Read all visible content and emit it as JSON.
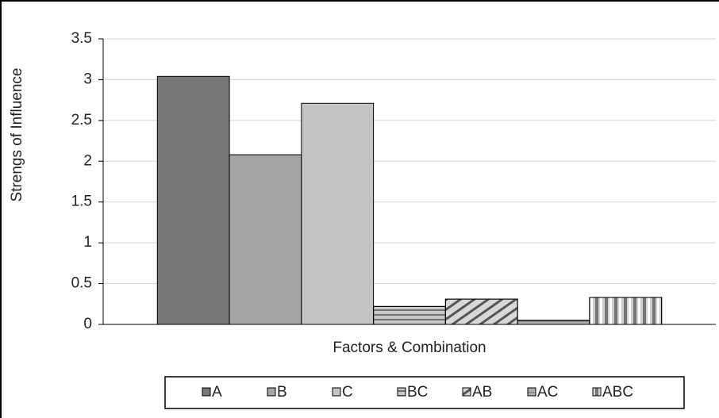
{
  "chart_data": {
    "type": "bar",
    "y_label": "Strengs of Influence",
    "categories": [
      "Factors & Combination"
    ],
    "series": [
      {
        "name": "A",
        "color": "#777777",
        "values": [
          3.04
        ]
      },
      {
        "name": "B",
        "color": "#a4a4a4",
        "values": [
          2.08
        ]
      },
      {
        "name": "C",
        "color": "#c4c4c4",
        "values": [
          2.71
        ]
      },
      {
        "name": "BC",
        "color": "#c8c8c8",
        "values": [
          0.22
        ]
      },
      {
        "name": "AB",
        "color": "#d8d8d8",
        "values": [
          0.31
        ]
      },
      {
        "name": "AC",
        "color": "#b0b0b0",
        "values": [
          0.05
        ]
      },
      {
        "name": "ABC",
        "color": "#d0d0d0",
        "values": [
          0.33
        ]
      }
    ],
    "ylim": [
      0,
      3.5
    ],
    "yticks": [
      0,
      0.5,
      1,
      1.5,
      2,
      2.5,
      3,
      3.5
    ],
    "grid": true
  }
}
